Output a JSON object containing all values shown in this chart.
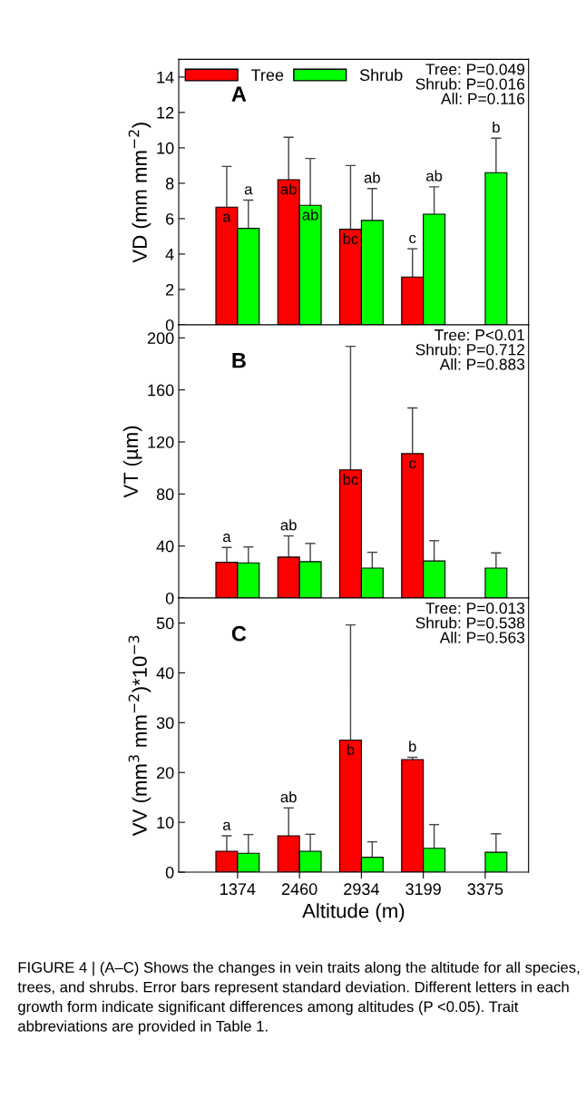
{
  "chart_data": [
    {
      "type": "bar",
      "categories": [
        "1374",
        "2460",
        "2934",
        "3199",
        "3375"
      ],
      "ylabel": "VD (mm mm$^{−2}$)",
      "ylim": [
        0,
        15
      ],
      "yticks": [
        0,
        2,
        4,
        6,
        8,
        10,
        12,
        14
      ],
      "tick_labels": "y",
      "grid": false,
      "legend": "top",
      "series": [
        {
          "name": "Tree",
          "color": "#ff0000",
          "values": [
            6.65,
            8.2,
            5.4,
            2.7,
            null
          ],
          "errors": [
            2.3,
            2.4,
            3.6,
            1.6,
            null
          ]
        },
        {
          "name": "Shrub",
          "color": "#00ff00",
          "values": [
            5.45,
            6.75,
            5.9,
            6.25,
            8.6
          ],
          "errors": [
            1.6,
            2.65,
            1.8,
            1.55,
            1.95
          ]
        }
      ],
      "annotations": [
        "A",
        "Tree: P=0.049\nShrub: P=0.016\nAll: P=0.116",
        {
          "text": "a",
          "x": "1374",
          "y": 6.65
        },
        {
          "text": "a",
          "x": "1374",
          "y": 5.45
        },
        {
          "text": "ab",
          "x": "2460",
          "y": 8.2
        },
        {
          "text": "ab",
          "x": "2460",
          "y": 6.75
        },
        {
          "text": "bc",
          "x": "2934",
          "y": 5.4
        },
        {
          "text": "ab",
          "x": "2934",
          "y": 5.9
        },
        {
          "text": "c",
          "x": "3199",
          "y": 2.7
        },
        {
          "text": "ab",
          "x": "3199",
          "y": 6.25
        },
        {
          "text": "b",
          "x": "3375",
          "y": 8.6
        }
      ]
    },
    {
      "type": "bar",
      "categories": [
        "1374",
        "2460",
        "2934",
        "3199",
        "3375"
      ],
      "ylabel": "VT (µm)",
      "ylim": [
        0,
        210
      ],
      "yticks": [
        0,
        40,
        80,
        120,
        160,
        200
      ],
      "tick_labels": "y",
      "grid": false,
      "series": [
        {
          "color": "#ff0000",
          "values": [
            27.5,
            31.5,
            98.5,
            111,
            null
          ],
          "errors": [
            11.4,
            16.3,
            95,
            35.2,
            null
          ]
        },
        {
          "color": "#00ff00",
          "values": [
            27,
            28,
            23,
            28.5,
            23
          ],
          "errors": [
            12.3,
            14,
            12.2,
            15.6,
            11.7
          ]
        }
      ],
      "annotations": [
        "B",
        "Tree: P<0.01\nShrub: P=0.712\nAll: P=0.883",
        {
          "text": "a",
          "x": "1374",
          "y": 27.5
        },
        {
          "text": "ab",
          "x": "2460",
          "y": 31.5
        },
        {
          "text": "bc",
          "x": "2934",
          "y": 98.5
        },
        {
          "text": "c",
          "x": "3199",
          "y": 111
        }
      ]
    },
    {
      "type": "bar",
      "categories": [
        "1374",
        "2460",
        "2934",
        "3199",
        "3375"
      ],
      "xlabel": "Altitude (m)",
      "ylabel": "VV (mm$^{3}$ mm$^{−2}$)*10$^{−3}$",
      "ylim": [
        0,
        55
      ],
      "yticks": [
        0,
        10,
        20,
        30,
        40,
        50
      ],
      "grid": false,
      "series": [
        {
          "color": "#ff0000",
          "values": [
            4.2,
            7.3,
            26.5,
            22.6,
            null
          ],
          "errors": [
            3.1,
            5.6,
            23.1,
            0.45,
            null
          ]
        },
        {
          "color": "#00ff00",
          "values": [
            3.8,
            4.2,
            3.0,
            4.8,
            4.0
          ],
          "errors": [
            3.75,
            3.4,
            3.1,
            4.75,
            3.7
          ]
        }
      ],
      "annotations": [
        "C",
        "Tree: P=0.013\nShrub: P=0.538\nAll: P=0.563",
        {
          "text": "a",
          "x": "1374",
          "y": 4.2
        },
        {
          "text": "ab",
          "x": "2460",
          "y": 7.3
        },
        {
          "text": "b",
          "x": "2934",
          "y": 26.5
        },
        {
          "text": "b",
          "x": "3199",
          "y": 22.6
        },
        "FIGURE 4 | (A–C) Shows the changes in vein traits along the altitude for all species, trees, and shrubs. Error bars represent standard deviation. Different letters in each growth form indicate significant differences among altitudes (P <0.05). Trait abbreviations are provided in Table 1."
      ]
    }
  ]
}
